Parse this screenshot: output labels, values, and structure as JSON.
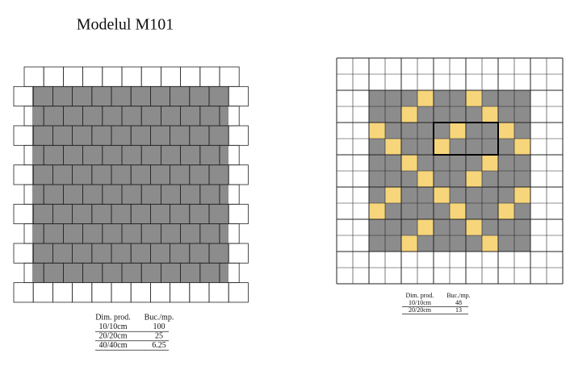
{
  "left": {
    "title": "Modelul M101",
    "table": {
      "header": [
        "Dim. prod.",
        "Buc./mp."
      ],
      "rows": [
        [
          "10/10cm",
          "100"
        ],
        [
          "20/20cm",
          "25"
        ],
        [
          "40/40cm",
          "6.25"
        ]
      ]
    }
  },
  "right": {
    "table": {
      "header": [
        "Dim. prod.",
        "Buc./mp."
      ],
      "rows": [
        [
          "10/10cm",
          "48"
        ],
        [
          "20/20cm",
          "13"
        ]
      ]
    }
  }
}
